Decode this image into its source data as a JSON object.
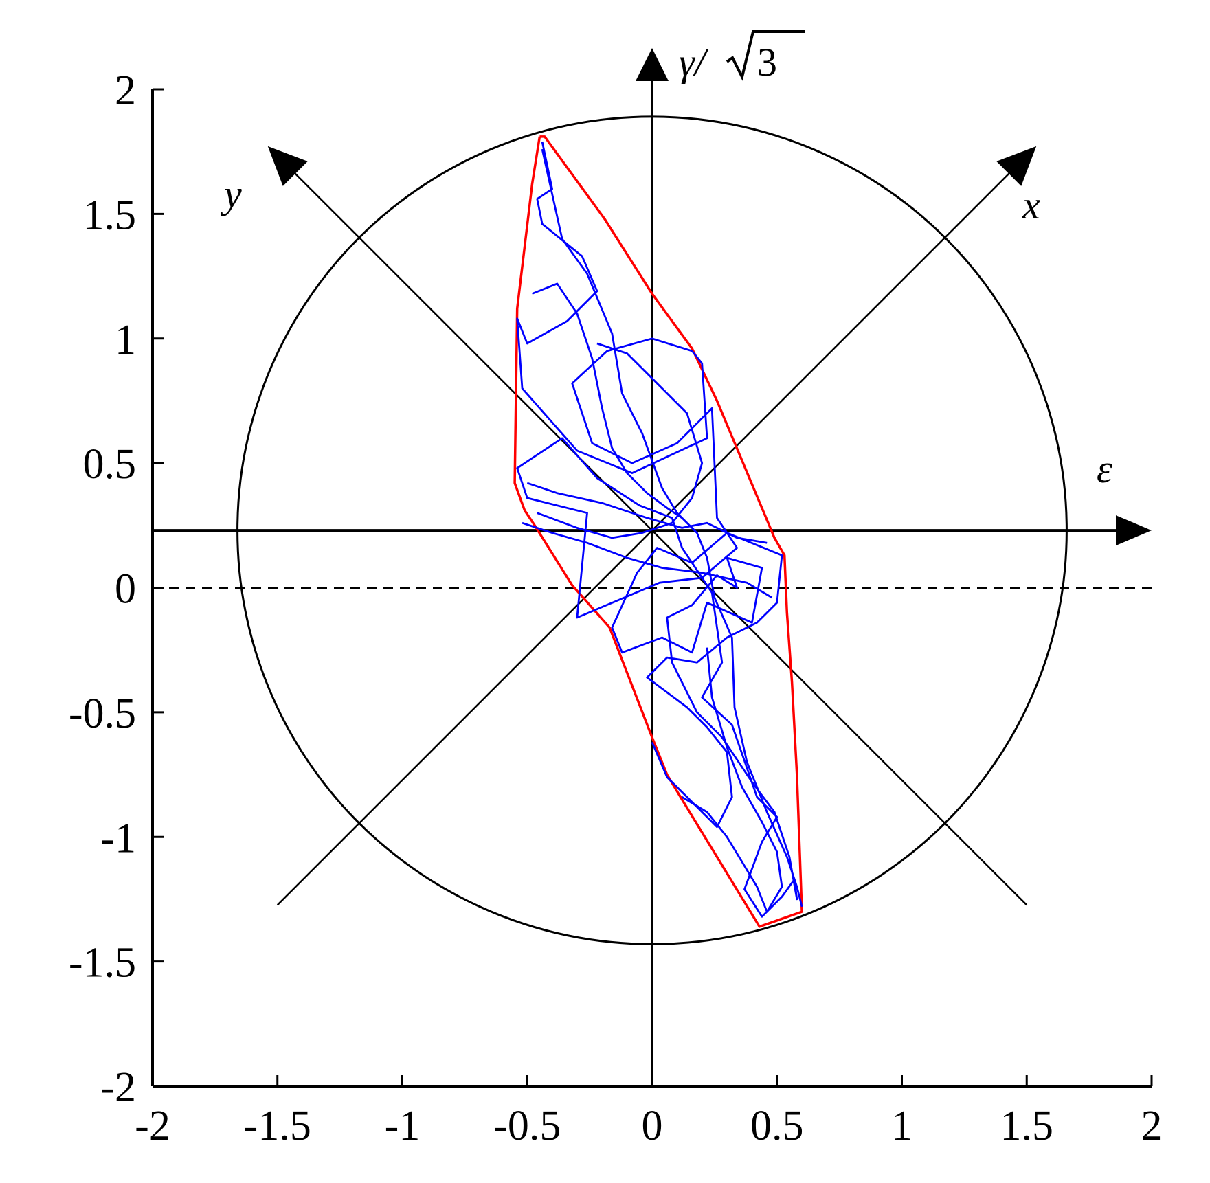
{
  "chart_data": {
    "type": "line",
    "xlim": [
      -2,
      2
    ],
    "ylim": [
      -2,
      2
    ],
    "x_ticks": [
      "-2",
      "-1.5",
      "-1",
      "-0.5",
      "0",
      "0.5",
      "1",
      "1.5",
      "2"
    ],
    "y_ticks": [
      "-2",
      "-1.5",
      "-1",
      "-0.5",
      "0",
      "0.5",
      "1",
      "1.5",
      "2"
    ],
    "grid": false,
    "axis_labels": {
      "epsilon": "ε",
      "gamma_prefix": "γ/",
      "gamma_radicand": "3",
      "x_axis": "x",
      "y_axis": "y"
    },
    "rotated_origin": [
      0,
      0.23
    ],
    "circle": {
      "cx": 0,
      "cy": 0.23,
      "r": 1.66
    },
    "zero_line_y": 0,
    "series": [
      {
        "color": "#ff0000",
        "points": [
          [
            -0.45,
            1.81
          ],
          [
            -0.48,
            1.62
          ],
          [
            -0.54,
            1.12
          ],
          [
            -0.55,
            0.42
          ],
          [
            -0.51,
            0.31
          ],
          [
            -0.47,
            0.25
          ],
          [
            -0.32,
            0.01
          ],
          [
            -0.17,
            -0.16
          ],
          [
            0.0,
            -0.6
          ],
          [
            0.06,
            -0.75
          ],
          [
            0.12,
            -0.85
          ],
          [
            0.43,
            -1.36
          ],
          [
            0.6,
            -1.3
          ],
          [
            0.58,
            -0.75
          ],
          [
            0.56,
            -0.38
          ],
          [
            0.54,
            -0.1
          ],
          [
            0.53,
            0.13
          ],
          [
            0.49,
            0.2
          ],
          [
            0.26,
            0.75
          ],
          [
            0.16,
            0.96
          ],
          [
            0.0,
            1.18
          ],
          [
            -0.19,
            1.48
          ],
          [
            -0.43,
            1.81
          ],
          [
            -0.45,
            1.81
          ]
        ]
      },
      {
        "color": "#0000ff",
        "points": [
          [
            -0.44,
            1.79
          ],
          [
            -0.4,
            1.6
          ],
          [
            -0.46,
            1.56
          ],
          [
            -0.44,
            1.46
          ],
          [
            -0.28,
            1.33
          ],
          [
            -0.22,
            1.19
          ],
          [
            -0.34,
            1.07
          ],
          [
            -0.5,
            0.98
          ],
          [
            -0.54,
            1.08
          ],
          [
            -0.52,
            0.8
          ],
          [
            -0.3,
            0.55
          ],
          [
            -0.08,
            0.46
          ],
          [
            0.22,
            0.6
          ],
          [
            0.2,
            0.9
          ],
          [
            0.16,
            0.95
          ],
          [
            0.0,
            1.0
          ],
          [
            -0.18,
            0.95
          ],
          [
            -0.32,
            0.82
          ],
          [
            -0.24,
            0.58
          ],
          [
            -0.08,
            0.5
          ],
          [
            0.1,
            0.58
          ],
          [
            0.24,
            0.72
          ],
          [
            0.26,
            0.28
          ],
          [
            0.34,
            0.16
          ],
          [
            0.2,
            0.04
          ],
          [
            0.03,
            0.02
          ],
          [
            -0.3,
            -0.12
          ],
          [
            -0.26,
            0.3
          ],
          [
            -0.5,
            0.36
          ],
          [
            -0.54,
            0.48
          ],
          [
            -0.36,
            0.6
          ],
          [
            -0.22,
            0.44
          ],
          [
            -0.05,
            0.33
          ],
          [
            0.08,
            0.28
          ],
          [
            0.12,
            0.16
          ],
          [
            0.16,
            0.1
          ],
          [
            0.24,
            -0.02
          ],
          [
            0.28,
            -0.3
          ],
          [
            0.2,
            -0.44
          ],
          [
            0.32,
            -0.55
          ],
          [
            0.42,
            -0.84
          ],
          [
            0.5,
            -0.92
          ],
          [
            0.44,
            -1.02
          ],
          [
            0.37,
            -1.21
          ],
          [
            0.44,
            -1.32
          ],
          [
            0.52,
            -1.24
          ],
          [
            0.57,
            -1.17
          ],
          [
            0.58,
            -1.25
          ],
          [
            0.55,
            -1.08
          ],
          [
            0.49,
            -0.9
          ],
          [
            0.4,
            -0.78
          ],
          [
            0.28,
            -0.6
          ],
          [
            0.18,
            -0.5
          ],
          [
            0.08,
            -0.3
          ],
          [
            0.06,
            -0.12
          ],
          [
            0.16,
            -0.07
          ],
          [
            0.26,
            0.05
          ],
          [
            0.34,
            0.0
          ],
          [
            0.3,
            0.12
          ],
          [
            0.44,
            0.08
          ],
          [
            0.4,
            -0.14
          ],
          [
            0.22,
            -0.06
          ],
          [
            0.16,
            -0.26
          ],
          [
            0.04,
            -0.2
          ],
          [
            -0.12,
            -0.26
          ],
          [
            -0.16,
            -0.16
          ],
          [
            -0.06,
            0.06
          ],
          [
            0.02,
            0.16
          ],
          [
            0.16,
            0.1
          ],
          [
            0.3,
            0.22
          ],
          [
            0.52,
            0.13
          ],
          [
            0.5,
            -0.06
          ],
          [
            0.42,
            -0.14
          ],
          [
            0.3,
            -0.2
          ],
          [
            0.18,
            -0.3
          ],
          [
            0.06,
            -0.28
          ],
          [
            -0.02,
            -0.36
          ],
          [
            0.14,
            -0.48
          ],
          [
            0.22,
            -0.56
          ],
          [
            0.3,
            -0.66
          ],
          [
            0.32,
            -0.84
          ],
          [
            0.26,
            -0.96
          ],
          [
            0.06,
            -0.76
          ],
          [
            0.0,
            -0.62
          ]
        ]
      },
      {
        "color": "#0000ff",
        "points": [
          [
            -0.44,
            1.76
          ],
          [
            -0.36,
            1.4
          ],
          [
            -0.26,
            1.26
          ],
          [
            -0.16,
            1.02
          ],
          [
            -0.12,
            0.78
          ],
          [
            -0.04,
            0.62
          ],
          [
            0.04,
            0.4
          ],
          [
            0.1,
            0.3
          ],
          [
            0.18,
            0.22
          ],
          [
            0.22,
            0.12
          ],
          [
            0.25,
            -0.04
          ],
          [
            0.32,
            -0.2
          ],
          [
            0.33,
            -0.48
          ],
          [
            0.38,
            -0.7
          ],
          [
            0.46,
            -0.9
          ],
          [
            0.54,
            -1.08
          ],
          [
            0.58,
            -1.2
          ],
          [
            0.6,
            -1.28
          ]
        ]
      },
      {
        "color": "#0000ff",
        "points": [
          [
            -0.5,
            0.42
          ],
          [
            -0.38,
            0.38
          ],
          [
            -0.2,
            0.34
          ],
          [
            -0.02,
            0.28
          ],
          [
            0.12,
            0.24
          ],
          [
            0.22,
            0.26
          ],
          [
            0.34,
            0.2
          ],
          [
            0.46,
            0.18
          ]
        ]
      },
      {
        "color": "#0000ff",
        "points": [
          [
            -0.52,
            0.26
          ],
          [
            -0.4,
            0.22
          ],
          [
            -0.26,
            0.18
          ],
          [
            -0.1,
            0.12
          ],
          [
            0.04,
            0.08
          ],
          [
            0.2,
            0.06
          ],
          [
            0.38,
            0.02
          ],
          [
            0.48,
            -0.04
          ]
        ]
      },
      {
        "color": "#0000ff",
        "points": [
          [
            -0.48,
            1.18
          ],
          [
            -0.38,
            1.22
          ],
          [
            -0.3,
            1.1
          ],
          [
            -0.24,
            0.92
          ],
          [
            -0.2,
            0.72
          ],
          [
            -0.16,
            0.56
          ],
          [
            -0.1,
            0.46
          ],
          [
            -0.02,
            0.38
          ],
          [
            0.06,
            0.32
          ],
          [
            0.12,
            0.28
          ]
        ]
      },
      {
        "color": "#0000ff",
        "points": [
          [
            0.12,
            -0.84
          ],
          [
            0.22,
            -0.9
          ],
          [
            0.3,
            -1.0
          ],
          [
            0.36,
            -1.1
          ],
          [
            0.42,
            -1.2
          ],
          [
            0.46,
            -1.3
          ],
          [
            0.52,
            -1.2
          ],
          [
            0.5,
            -1.06
          ],
          [
            0.44,
            -0.94
          ],
          [
            0.36,
            -0.8
          ],
          [
            0.3,
            -0.64
          ],
          [
            0.24,
            -0.44
          ],
          [
            0.22,
            -0.24
          ]
        ]
      },
      {
        "color": "#0000ff",
        "points": [
          [
            -0.22,
            0.98
          ],
          [
            -0.1,
            0.94
          ],
          [
            0.02,
            0.82
          ],
          [
            0.14,
            0.7
          ],
          [
            0.2,
            0.5
          ],
          [
            0.16,
            0.36
          ],
          [
            0.08,
            0.26
          ],
          [
            -0.04,
            0.22
          ],
          [
            -0.16,
            0.2
          ],
          [
            -0.3,
            0.24
          ],
          [
            -0.46,
            0.3
          ]
        ]
      }
    ]
  }
}
